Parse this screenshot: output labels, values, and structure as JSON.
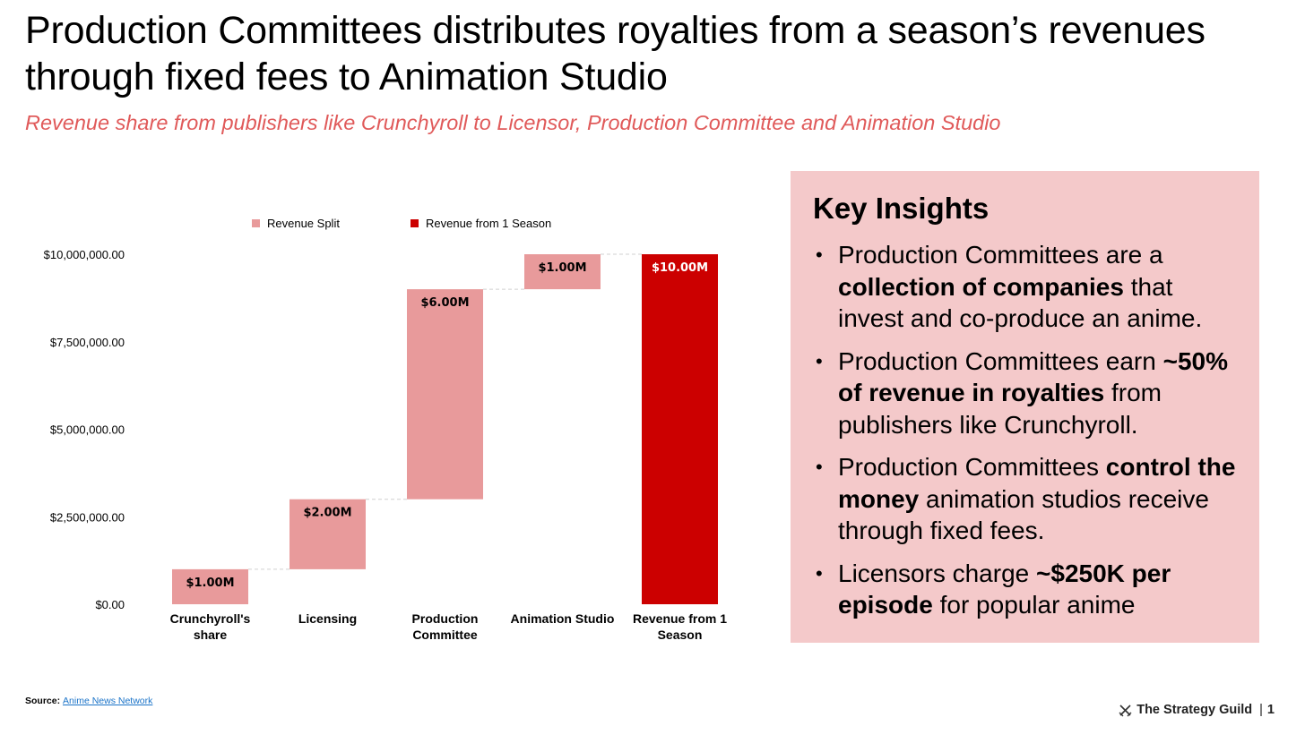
{
  "header": {
    "title": "Production Committees distributes royalties from a season’s revenues through fixed fees to Animation Studio",
    "subtitle": "Revenue share from publishers like Crunchyroll to Licensor, Production Committee and Animation Studio"
  },
  "chart_data": {
    "type": "waterfall",
    "legend_position": "top",
    "series": [
      {
        "name": "Revenue Split",
        "color": "#e89a9b"
      },
      {
        "name": "Revenue from 1 Season",
        "color": "#cc0000"
      }
    ],
    "categories": [
      [
        "Crunchyroll's",
        "share"
      ],
      [
        "Licensing"
      ],
      [
        "Production",
        "Committee"
      ],
      [
        "Animation Studio"
      ],
      [
        "Revenue from 1",
        "Season"
      ]
    ],
    "steps": [
      {
        "start": 0,
        "value": 1000000,
        "label": "$1.00M",
        "series": 0
      },
      {
        "start": 1000000,
        "value": 2000000,
        "label": "$2.00M",
        "series": 0
      },
      {
        "start": 3000000,
        "value": 6000000,
        "label": "$6.00M",
        "series": 0
      },
      {
        "start": 9000000,
        "value": 1000000,
        "label": "$1.00M",
        "series": 0
      },
      {
        "start": 0,
        "value": 10000000,
        "label": "$10.00M",
        "series": 1
      }
    ],
    "y_ticks": [
      {
        "value": 0,
        "label": "$0.00"
      },
      {
        "value": 2500000,
        "label": "$2,500,000.00"
      },
      {
        "value": 5000000,
        "label": "$5,000,000.00"
      },
      {
        "value": 7500000,
        "label": "$7,500,000.00"
      },
      {
        "value": 10000000,
        "label": "$10,000,000.00"
      }
    ],
    "ylim": [
      0,
      10000000
    ],
    "grid": false
  },
  "insights": {
    "heading": "Key Insights",
    "items": [
      {
        "pre": "Production Committees are a ",
        "bold": "collection of companies",
        "post": " that invest and co-produce an anime."
      },
      {
        "pre": "Production Committees earn ",
        "bold": "~50% of revenue in royalties",
        "post": " from publishers like Crunchyroll."
      },
      {
        "pre": "Production Committees ",
        "bold": "control the money",
        "post": " animation studios receive through fixed fees."
      },
      {
        "pre": "Licensors charge ",
        "bold": "~$250K per episode",
        "post": " for popular anime"
      }
    ]
  },
  "footer": {
    "source_label": "Source:",
    "source_link": "Anime News Network",
    "brand": "The Strategy Guild",
    "separator": "|",
    "page_number": "1"
  }
}
